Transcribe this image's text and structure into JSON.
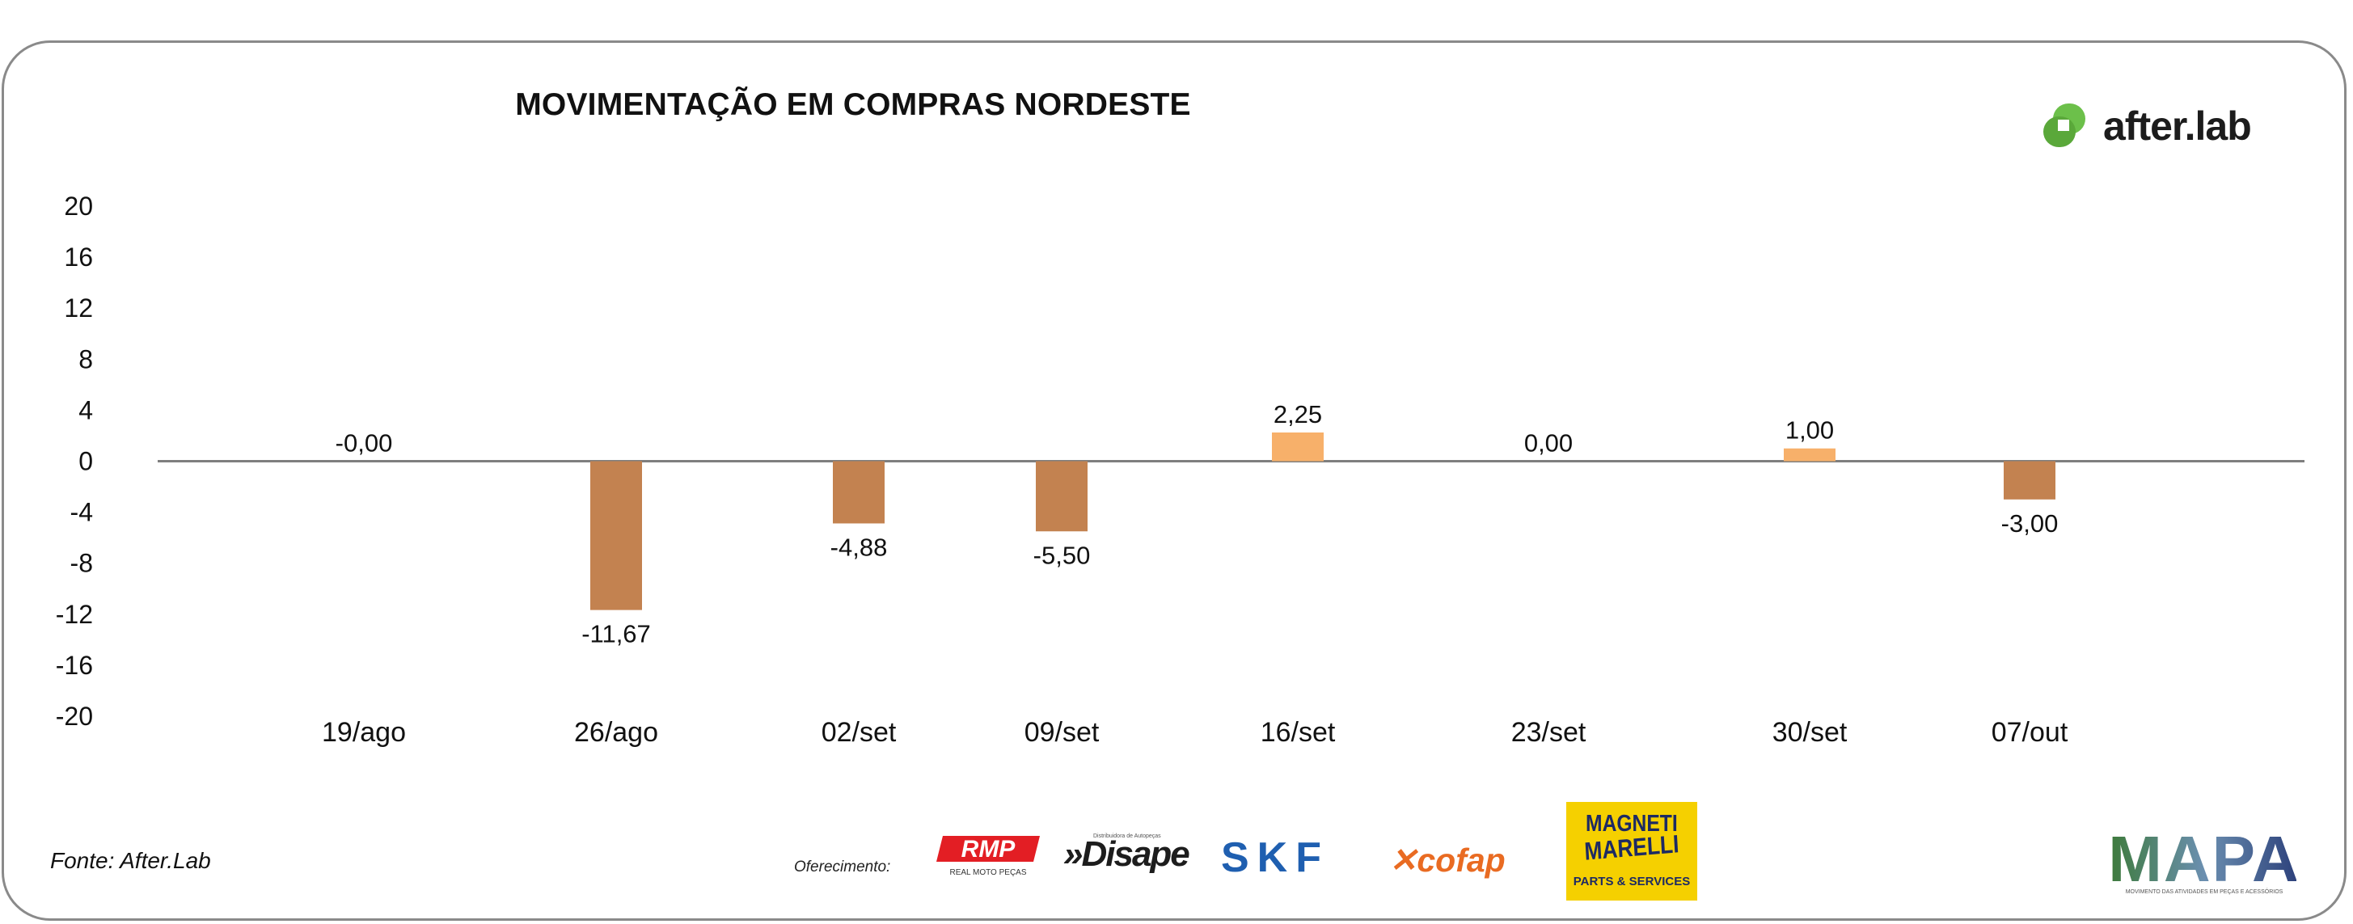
{
  "title": "MOVIMENTAÇÃO EM COMPRAS NORDESTE",
  "brand": {
    "name": "after.lab",
    "color": "#6cc04a"
  },
  "source": "Fonte: After.Lab",
  "sponsor_label": "Oferecimento:",
  "sponsors": {
    "rmp": {
      "name": "RMP",
      "tagline": "REAL MOTO PEÇAS",
      "color": "#e31e24"
    },
    "disape": {
      "name": "»Disape",
      "tagline": "Distribuidora de Autopeças"
    },
    "skf": {
      "name": "SKF",
      "color": "#1f5fb0"
    },
    "cofap": {
      "name": "cofap",
      "color": "#e96b22"
    },
    "magneti": {
      "line1": "MAGNETI",
      "line2": "MARELLI",
      "tagline": "PARTS & SERVICES",
      "color": "#f5d000"
    },
    "mapa": {
      "name": "MAPA",
      "tagline": "MOVIMENTO DAS ATIVIDADES EM PEÇAS E ACESSÓRIOS"
    }
  },
  "chart_data": {
    "type": "bar",
    "title": "MOVIMENTAÇÃO EM COMPRAS NORDESTE",
    "categories": [
      "19/ago",
      "26/ago",
      "02/set",
      "09/set",
      "16/set",
      "23/set",
      "30/set",
      "07/out"
    ],
    "values": [
      -0.0,
      -11.67,
      -4.88,
      -5.5,
      2.25,
      0.0,
      1.0,
      -3.0
    ],
    "data_labels": [
      "-0,00",
      "-11,67",
      "-4,88",
      "-5,50",
      "2,25",
      "0,00",
      "1,00",
      "-3,00"
    ],
    "ylim": [
      -20,
      20
    ],
    "yticks": [
      20,
      16,
      12,
      8,
      4,
      0,
      -4,
      -8,
      -12,
      -16,
      -20
    ],
    "xlabel": "",
    "ylabel": "",
    "grid": false,
    "colors": {
      "negative": "#c38250",
      "positive": "#f7b06a",
      "zero_line": "#7f7f7f"
    }
  }
}
